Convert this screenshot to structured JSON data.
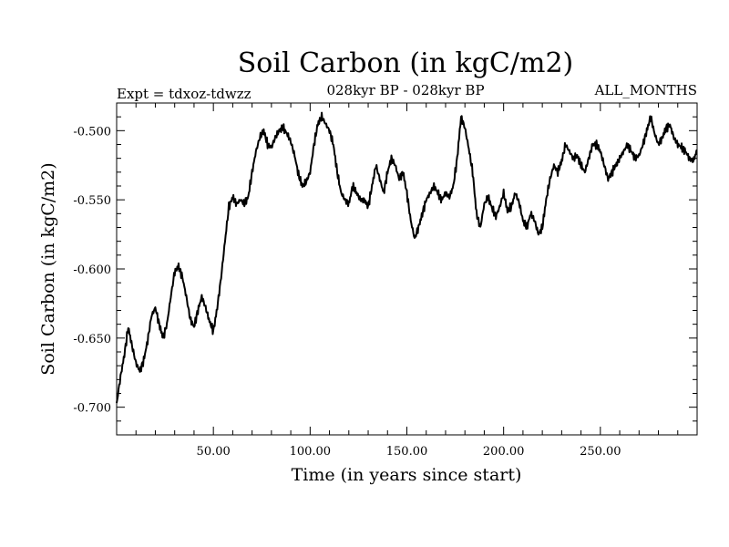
{
  "chart_data": {
    "type": "line",
    "title": "Soil Carbon (in kgC/m2)",
    "subtitle_left": "Expt = tdxoz-tdwzz",
    "subtitle_center": "028kyr BP - 028kyr BP",
    "subtitle_right": "ALL_MONTHS",
    "xlabel": "Time (in years since start)",
    "ylabel": "Soil Carbon (in kgC/m2)",
    "xlim": [
      0,
      300
    ],
    "ylim": [
      -0.72,
      -0.48
    ],
    "xticks": [
      50,
      100,
      150,
      200,
      250
    ],
    "xtick_labels": [
      "50.00",
      "100.00",
      "150.00",
      "200.00",
      "250.00"
    ],
    "yticks": [
      -0.7,
      -0.65,
      -0.6,
      -0.55,
      -0.5
    ],
    "ytick_labels": [
      "-0.700",
      "-0.650",
      "-0.600",
      "-0.550",
      "-0.500"
    ],
    "grid": false,
    "line_color": "#000000",
    "series": [
      {
        "x": [
          0,
          2,
          4,
          6,
          8,
          10,
          12,
          14,
          16,
          18,
          20,
          22,
          24,
          26,
          28,
          30,
          32,
          34,
          36,
          38,
          40,
          42,
          44,
          46,
          48,
          50,
          52,
          54,
          56,
          58,
          60,
          62,
          64,
          66,
          68,
          70,
          72,
          74,
          76,
          78,
          80,
          82,
          84,
          86,
          88,
          90,
          92,
          94,
          96,
          98,
          100,
          102,
          104,
          106,
          108,
          110,
          112,
          114,
          116,
          118,
          120,
          122,
          124,
          126,
          128,
          130,
          132,
          134,
          136,
          138,
          140,
          142,
          144,
          146,
          148,
          150,
          152,
          154,
          156,
          158,
          160,
          162,
          164,
          166,
          168,
          170,
          172,
          174,
          176,
          178,
          180,
          182,
          184,
          186,
          188,
          190,
          192,
          194,
          196,
          198,
          200,
          202,
          204,
          206,
          208,
          210,
          212,
          214,
          216,
          218,
          220,
          222,
          224,
          226,
          228,
          230,
          232,
          234,
          236,
          238,
          240,
          242,
          244,
          246,
          248,
          250,
          252,
          254,
          256,
          258,
          260,
          262,
          264,
          266,
          268,
          270,
          272,
          274,
          276,
          278,
          280,
          282,
          284,
          286,
          288,
          290,
          292,
          294,
          296,
          298,
          300
        ],
        "values": [
          -0.697,
          -0.678,
          -0.662,
          -0.642,
          -0.656,
          -0.668,
          -0.674,
          -0.666,
          -0.652,
          -0.634,
          -0.628,
          -0.64,
          -0.65,
          -0.64,
          -0.62,
          -0.602,
          -0.598,
          -0.606,
          -0.62,
          -0.636,
          -0.642,
          -0.63,
          -0.62,
          -0.628,
          -0.638,
          -0.645,
          -0.628,
          -0.606,
          -0.58,
          -0.555,
          -0.548,
          -0.553,
          -0.55,
          -0.553,
          -0.548,
          -0.53,
          -0.515,
          -0.505,
          -0.5,
          -0.51,
          -0.512,
          -0.505,
          -0.5,
          -0.498,
          -0.502,
          -0.508,
          -0.518,
          -0.532,
          -0.54,
          -0.537,
          -0.53,
          -0.51,
          -0.495,
          -0.49,
          -0.495,
          -0.5,
          -0.51,
          -0.53,
          -0.545,
          -0.55,
          -0.553,
          -0.54,
          -0.545,
          -0.55,
          -0.55,
          -0.555,
          -0.54,
          -0.525,
          -0.535,
          -0.545,
          -0.53,
          -0.52,
          -0.525,
          -0.535,
          -0.53,
          -0.545,
          -0.565,
          -0.578,
          -0.57,
          -0.56,
          -0.55,
          -0.545,
          -0.54,
          -0.545,
          -0.55,
          -0.545,
          -0.548,
          -0.54,
          -0.52,
          -0.49,
          -0.498,
          -0.513,
          -0.53,
          -0.56,
          -0.57,
          -0.553,
          -0.548,
          -0.556,
          -0.562,
          -0.555,
          -0.545,
          -0.558,
          -0.555,
          -0.545,
          -0.552,
          -0.565,
          -0.57,
          -0.56,
          -0.565,
          -0.575,
          -0.57,
          -0.55,
          -0.535,
          -0.525,
          -0.53,
          -0.522,
          -0.51,
          -0.515,
          -0.52,
          -0.518,
          -0.525,
          -0.53,
          -0.52,
          -0.51,
          -0.51,
          -0.515,
          -0.525,
          -0.535,
          -0.53,
          -0.525,
          -0.52,
          -0.515,
          -0.51,
          -0.515,
          -0.52,
          -0.518,
          -0.51,
          -0.5,
          -0.49,
          -0.502,
          -0.51,
          -0.505,
          -0.498,
          -0.496,
          -0.505,
          -0.51,
          -0.512,
          -0.515,
          -0.52,
          -0.522,
          -0.514
        ]
      }
    ]
  }
}
